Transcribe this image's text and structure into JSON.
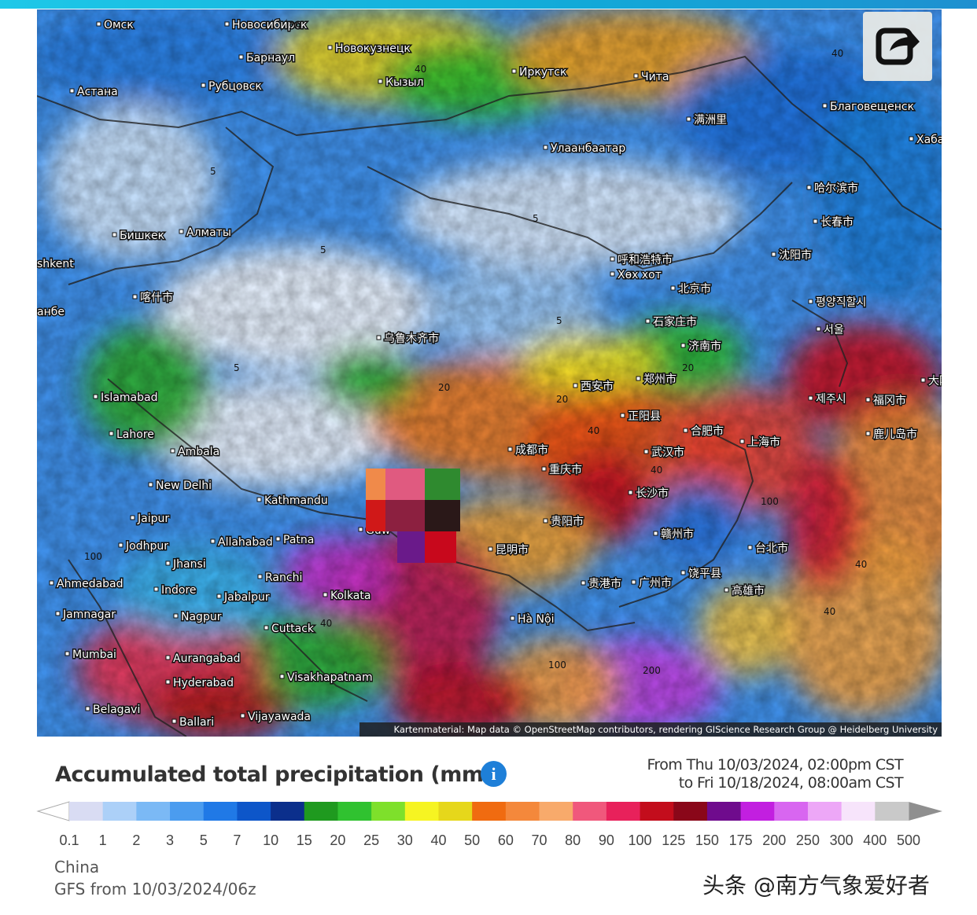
{
  "map": {
    "labels": [
      "Омск",
      "Новосибирск",
      "Барнаул",
      "Новокузнецк",
      "Рубцовск",
      "Астана",
      "Кызыл",
      "Иркутск",
      "Чита",
      "Благовещенск",
      "Хабаро",
      "Улаанбаатар",
      "满洲里",
      "哈尔滨市",
      "长春市",
      "沈阳市",
      "Бишкек",
      "Алматы",
      "shkent",
      "呼和浩特市",
      "Хөх хот",
      "北京市",
      "평양직할시",
      "서울",
      "喀什市",
      "анбе",
      "石家庄市",
      "济南市",
      "乌鲁木齐市",
      "Islamabad",
      "Lahore",
      "Ambala",
      "New Delhi",
      "西安市",
      "郑州市",
      "福冈市",
      "제주시",
      "正阳县",
      "合肥市",
      "上海市",
      "鹿儿岛市",
      "大阪",
      "成都市",
      "武汉市",
      "重庆市",
      "长沙市",
      "Kathmandu",
      "Jaipur",
      "Jodhpur",
      "Allahabad",
      "Patna",
      "Guw",
      "贵阳市",
      "昆明市",
      "赣州市",
      "台北市",
      "Jhansi",
      "Ranchi",
      "贵港市",
      "广州市",
      "饶平县",
      "高雄市",
      "Ahmedabad",
      "Indore",
      "Jabalpur",
      "Kolkata",
      "Hà Nội",
      "Jamnagar",
      "Nagpur",
      "Cuttack",
      "Mumbai",
      "Aurangabad",
      "Hyderabad",
      "Visakhapatnam",
      "Belagavi",
      "Ballari",
      "Vijayawada"
    ],
    "contour_labels": [
      "20",
      "40",
      "40",
      "5",
      "5",
      "5",
      "5",
      "20",
      "40",
      "20",
      "40",
      "100",
      "200",
      "100",
      "40",
      "40",
      "100",
      "40",
      "20",
      "5"
    ],
    "attribution": "Kartenmaterial: Map data © OpenStreetMap contributors, rendering GIScience Research Group @ Heidelberg University"
  },
  "header": {
    "title": "Accumulated total precipitation (mm)",
    "info_icon": "i",
    "from": "From Thu 10/03/2024, 02:00pm CST",
    "to": "to Fri 10/18/2024, 08:00am CST"
  },
  "legend": {
    "ticks": [
      0.1,
      1,
      2,
      3,
      5,
      7,
      10,
      15,
      20,
      25,
      30,
      40,
      50,
      60,
      70,
      80,
      90,
      100,
      125,
      150,
      175,
      200,
      250,
      300,
      400,
      500
    ],
    "colors": [
      "#d9dcf3",
      "#acd0f8",
      "#7bb9f5",
      "#4b9cef",
      "#2079e6",
      "#0d56c9",
      "#0b2f8c",
      "#1f9a1f",
      "#30c230",
      "#7ee02b",
      "#f6f422",
      "#e6d71b",
      "#f06b10",
      "#f4883b",
      "#f8aa6b",
      "#f0587c",
      "#e8215b",
      "#c30d1c",
      "#8a0719",
      "#6f0b8d",
      "#c21fe0",
      "#d866f0",
      "#eda7f7",
      "#f7e4fb",
      "#c9c9c9"
    ]
  },
  "footer": {
    "region": "China",
    "model": "GFS from 10/03/2024/06z"
  },
  "watermark": "头条 @南方气象爱好者"
}
